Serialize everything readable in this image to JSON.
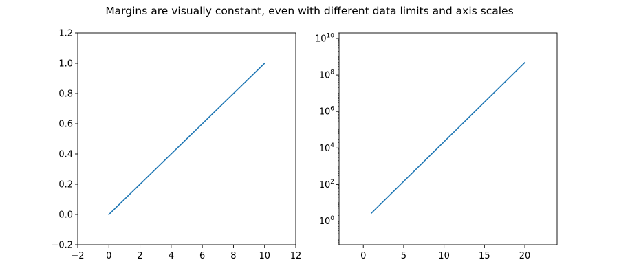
{
  "figure": {
    "title": "Margins are visually constant, even with different data limits and axis scales"
  },
  "chart_data": [
    {
      "type": "line",
      "title": "",
      "xlabel": "",
      "ylabel": "",
      "xscale": "linear",
      "yscale": "linear",
      "xlim": [
        -2,
        12
      ],
      "ylim": [
        -0.2,
        1.2
      ],
      "xticks": [
        -2,
        0,
        2,
        4,
        6,
        8,
        10,
        12
      ],
      "xtick_labels": [
        "−2",
        "0",
        "2",
        "4",
        "6",
        "8",
        "10",
        "12"
      ],
      "yticks": [
        -0.2,
        0.0,
        0.2,
        0.4,
        0.6,
        0.8,
        1.0,
        1.2
      ],
      "ytick_labels": [
        "−0.2",
        "0.0",
        "0.2",
        "0.4",
        "0.6",
        "0.8",
        "1.0",
        "1.2"
      ],
      "grid": false,
      "color": "#1f77b4",
      "series": [
        {
          "x": [
            0,
            10
          ],
          "y": [
            0,
            1
          ]
        }
      ]
    },
    {
      "type": "line",
      "title": "",
      "xlabel": "",
      "ylabel": "",
      "xscale": "linear",
      "yscale": "log",
      "xlim": [
        -3,
        24
      ],
      "ylim": [
        0.05,
        20000000000
      ],
      "xticks": [
        0,
        5,
        10,
        15,
        20
      ],
      "xtick_labels": [
        "0",
        "5",
        "10",
        "15",
        "20"
      ],
      "yticks": [
        1,
        100,
        10000,
        1000000,
        100000000,
        10000000000
      ],
      "ytick_labels": [
        {
          "base": "10",
          "exp": "0"
        },
        {
          "base": "10",
          "exp": "2"
        },
        {
          "base": "10",
          "exp": "4"
        },
        {
          "base": "10",
          "exp": "6"
        },
        {
          "base": "10",
          "exp": "8"
        },
        {
          "base": "10",
          "exp": "10"
        }
      ],
      "grid": false,
      "color": "#1f77b4",
      "series": [
        {
          "x": [
            1,
            20
          ],
          "y": [
            2.7,
            485000000
          ]
        }
      ]
    }
  ]
}
